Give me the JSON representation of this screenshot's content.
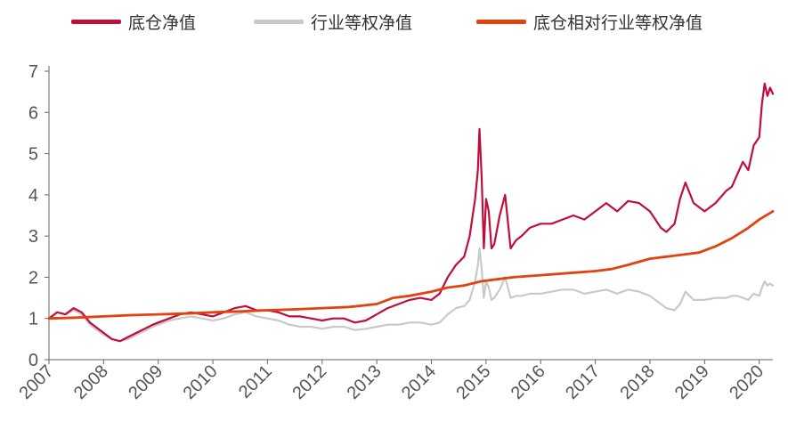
{
  "chart_data": {
    "type": "line",
    "title": "",
    "xlabel": "",
    "ylabel": "",
    "ylim": [
      0,
      7
    ],
    "xlim": [
      2007.0,
      2020.25
    ],
    "yticks": [
      "0",
      "1",
      "2",
      "3",
      "4",
      "5",
      "6",
      "7"
    ],
    "xticks": [
      "2007",
      "2008",
      "2009",
      "2010",
      "2011",
      "2012",
      "2013",
      "2014",
      "2015",
      "2016",
      "2017",
      "2018",
      "2019",
      "2020"
    ],
    "legend_position": "top",
    "grid": false,
    "series": [
      {
        "name": "底仓净值",
        "color": "#C00D3A",
        "x": [
          2007.0,
          2007.15,
          2007.3,
          2007.45,
          2007.6,
          2007.75,
          2007.9,
          2008.0,
          2008.15,
          2008.3,
          2008.45,
          2008.6,
          2008.75,
          2008.9,
          2009.0,
          2009.2,
          2009.4,
          2009.6,
          2009.8,
          2010.0,
          2010.2,
          2010.4,
          2010.6,
          2010.8,
          2011.0,
          2011.2,
          2011.4,
          2011.6,
          2011.8,
          2012.0,
          2012.2,
          2012.4,
          2012.6,
          2012.8,
          2013.0,
          2013.2,
          2013.4,
          2013.6,
          2013.8,
          2014.0,
          2014.15,
          2014.3,
          2014.45,
          2014.6,
          2014.7,
          2014.8,
          2014.85,
          2014.88,
          2014.92,
          2014.96,
          2015.0,
          2015.05,
          2015.1,
          2015.15,
          2015.25,
          2015.35,
          2015.45,
          2015.55,
          2015.65,
          2015.8,
          2016.0,
          2016.2,
          2016.4,
          2016.6,
          2016.8,
          2017.0,
          2017.2,
          2017.4,
          2017.6,
          2017.8,
          2018.0,
          2018.1,
          2018.2,
          2018.3,
          2018.45,
          2018.55,
          2018.65,
          2018.8,
          2019.0,
          2019.2,
          2019.4,
          2019.5,
          2019.6,
          2019.7,
          2019.8,
          2019.9,
          2020.0,
          2020.05,
          2020.1,
          2020.15,
          2020.2,
          2020.25
        ],
        "values": [
          1.0,
          1.15,
          1.1,
          1.25,
          1.15,
          0.9,
          0.75,
          0.65,
          0.5,
          0.45,
          0.55,
          0.65,
          0.75,
          0.85,
          0.9,
          1.0,
          1.1,
          1.15,
          1.1,
          1.05,
          1.15,
          1.25,
          1.3,
          1.2,
          1.2,
          1.15,
          1.05,
          1.05,
          1.0,
          0.95,
          1.0,
          1.0,
          0.9,
          0.95,
          1.1,
          1.25,
          1.35,
          1.45,
          1.5,
          1.45,
          1.6,
          2.0,
          2.3,
          2.5,
          3.0,
          3.9,
          4.6,
          5.6,
          4.4,
          2.7,
          3.9,
          3.6,
          2.7,
          2.8,
          3.5,
          4.0,
          2.7,
          2.9,
          3.0,
          3.2,
          3.3,
          3.3,
          3.4,
          3.5,
          3.4,
          3.6,
          3.8,
          3.6,
          3.85,
          3.8,
          3.6,
          3.4,
          3.2,
          3.1,
          3.3,
          3.9,
          4.3,
          3.8,
          3.6,
          3.8,
          4.1,
          4.2,
          4.5,
          4.8,
          4.6,
          5.2,
          5.4,
          6.2,
          6.7,
          6.4,
          6.6,
          6.45
        ]
      },
      {
        "name": "行业等权净值",
        "color": "#C9C9C9",
        "x": [
          2007.0,
          2007.15,
          2007.3,
          2007.45,
          2007.6,
          2007.75,
          2007.9,
          2008.0,
          2008.15,
          2008.3,
          2008.45,
          2008.6,
          2008.75,
          2008.9,
          2009.0,
          2009.2,
          2009.4,
          2009.6,
          2009.8,
          2010.0,
          2010.2,
          2010.4,
          2010.6,
          2010.8,
          2011.0,
          2011.2,
          2011.4,
          2011.6,
          2011.8,
          2012.0,
          2012.2,
          2012.4,
          2012.6,
          2012.8,
          2013.0,
          2013.2,
          2013.4,
          2013.6,
          2013.8,
          2014.0,
          2014.15,
          2014.3,
          2014.45,
          2014.6,
          2014.7,
          2014.8,
          2014.85,
          2014.88,
          2014.92,
          2014.96,
          2015.0,
          2015.05,
          2015.1,
          2015.15,
          2015.25,
          2015.35,
          2015.45,
          2015.55,
          2015.65,
          2015.8,
          2016.0,
          2016.2,
          2016.4,
          2016.6,
          2016.8,
          2017.0,
          2017.2,
          2017.4,
          2017.6,
          2017.8,
          2018.0,
          2018.1,
          2018.2,
          2018.3,
          2018.45,
          2018.55,
          2018.65,
          2018.8,
          2019.0,
          2019.2,
          2019.4,
          2019.5,
          2019.6,
          2019.7,
          2019.8,
          2019.9,
          2020.0,
          2020.05,
          2020.1,
          2020.15,
          2020.2,
          2020.25
        ],
        "values": [
          1.0,
          1.15,
          1.1,
          1.2,
          1.1,
          0.85,
          0.7,
          0.6,
          0.5,
          0.45,
          0.5,
          0.6,
          0.7,
          0.8,
          0.85,
          0.95,
          1.0,
          1.05,
          1.0,
          0.95,
          1.0,
          1.1,
          1.15,
          1.05,
          1.0,
          0.95,
          0.85,
          0.8,
          0.8,
          0.75,
          0.8,
          0.8,
          0.72,
          0.75,
          0.8,
          0.85,
          0.85,
          0.9,
          0.9,
          0.85,
          0.9,
          1.1,
          1.25,
          1.3,
          1.45,
          1.9,
          2.3,
          2.7,
          2.2,
          1.5,
          1.9,
          1.75,
          1.45,
          1.5,
          1.7,
          2.0,
          1.5,
          1.55,
          1.55,
          1.6,
          1.6,
          1.65,
          1.7,
          1.7,
          1.6,
          1.65,
          1.7,
          1.6,
          1.7,
          1.65,
          1.55,
          1.45,
          1.35,
          1.25,
          1.2,
          1.35,
          1.65,
          1.45,
          1.45,
          1.5,
          1.5,
          1.55,
          1.55,
          1.5,
          1.45,
          1.6,
          1.55,
          1.75,
          1.9,
          1.8,
          1.85,
          1.8
        ]
      },
      {
        "name": "底仓相对行业等权净值",
        "color": "#E2420E",
        "x": [
          2007.0,
          2007.5,
          2008.0,
          2008.5,
          2009.0,
          2009.5,
          2010.0,
          2010.5,
          2011.0,
          2011.5,
          2012.0,
          2012.5,
          2013.0,
          2013.3,
          2013.6,
          2014.0,
          2014.3,
          2014.6,
          2014.9,
          2015.2,
          2015.5,
          2016.0,
          2016.5,
          2017.0,
          2017.3,
          2017.6,
          2018.0,
          2018.3,
          2018.6,
          2018.9,
          2019.2,
          2019.5,
          2019.8,
          2020.0,
          2020.25
        ],
        "values": [
          1.0,
          1.02,
          1.05,
          1.08,
          1.1,
          1.12,
          1.15,
          1.17,
          1.2,
          1.22,
          1.25,
          1.28,
          1.35,
          1.5,
          1.55,
          1.65,
          1.75,
          1.8,
          1.9,
          1.95,
          2.0,
          2.05,
          2.1,
          2.15,
          2.2,
          2.3,
          2.45,
          2.5,
          2.55,
          2.6,
          2.75,
          2.95,
          3.2,
          3.4,
          3.6
        ]
      }
    ]
  }
}
